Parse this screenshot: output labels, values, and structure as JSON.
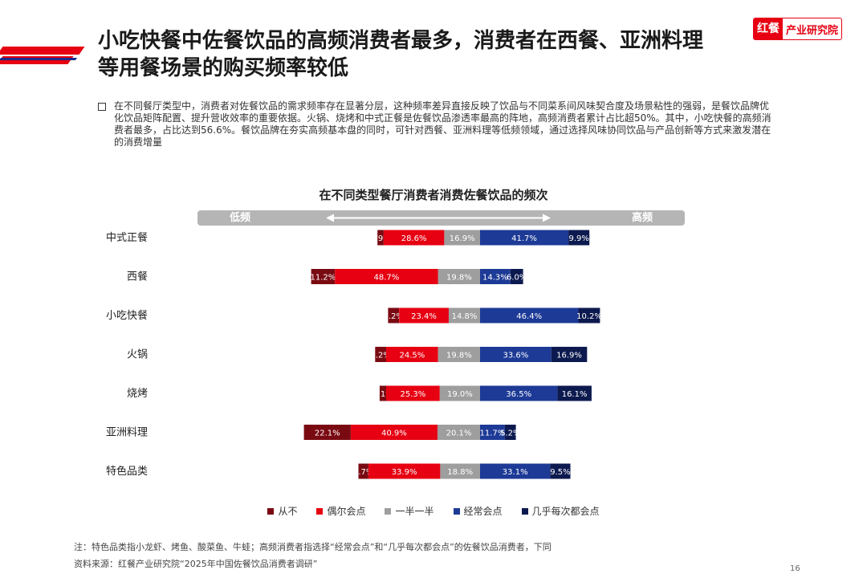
{
  "header": {
    "title_line1": "小吃快餐中佐餐饮品的高频消费者最多，消费者在西餐、亚洲料理",
    "title_line2": "等用餐场景的购买频率较低",
    "logo_mark": "红餐",
    "logo_text": "产业研究院"
  },
  "intro": "在不同餐厅类型中，消费者对佐餐饮品的需求频率存在显著分层，这种频率差异直接反映了饮品与不同菜系间风味契合度及场景粘性的强弱，是餐饮品牌优化饮品矩阵配置、提升营收效率的重要依据。火锅、烧烤和中式正餐是佐餐饮品渗透率最高的阵地，高频消费者累计占比超50%。其中，小吃快餐的高频消费者最多，占比达到56.6%。餐饮品牌在夯实高频基本盘的同时，可针对西餐、亚洲料理等低频领域，通过选择风味协同饮品与产品创新等方式来激发潜在的消费增量",
  "chart_data": {
    "type": "bar",
    "orientation": "horizontal",
    "stacked": true,
    "title": "在不同类型餐厅消费者消费佐餐饮品的频次",
    "scale_low": "低频",
    "scale_high": "高频",
    "categories": [
      "中式正餐",
      "西餐",
      "小吃快餐",
      "火锅",
      "烧烤",
      "亚洲料理",
      "特色品类"
    ],
    "series": [
      {
        "name": "从不",
        "color": "#7a0a12",
        "values": [
          2.9,
          11.2,
          5.2,
          5.2,
          3.1,
          22.1,
          4.7
        ]
      },
      {
        "name": "偶尔会点",
        "color": "#e60012",
        "values": [
          28.6,
          48.7,
          23.4,
          24.5,
          25.3,
          40.9,
          33.9
        ]
      },
      {
        "name": "一半一半",
        "color": "#9e9e9e",
        "values": [
          16.9,
          19.8,
          14.8,
          19.8,
          19.0,
          20.1,
          18.8
        ]
      },
      {
        "name": "经常会点",
        "color": "#1d3a96",
        "values": [
          41.7,
          14.3,
          46.4,
          33.6,
          36.5,
          11.7,
          33.1
        ]
      },
      {
        "name": "几乎每次都会点",
        "color": "#0d1a4f",
        "values": [
          9.9,
          6.0,
          10.2,
          16.9,
          16.1,
          5.2,
          9.5
        ]
      }
    ],
    "legend_position": "bottom"
  },
  "footer": {
    "note": "注：特色品类指小龙虾、烤鱼、酸菜鱼、牛蛙；高频消费者指选择“经常会点”和“几乎每次都会点”的佐餐饮品消费者，下同",
    "source": "资料来源：红餐产业研究院“2025年中国佐餐饮品消费者调研”",
    "page": "16"
  }
}
